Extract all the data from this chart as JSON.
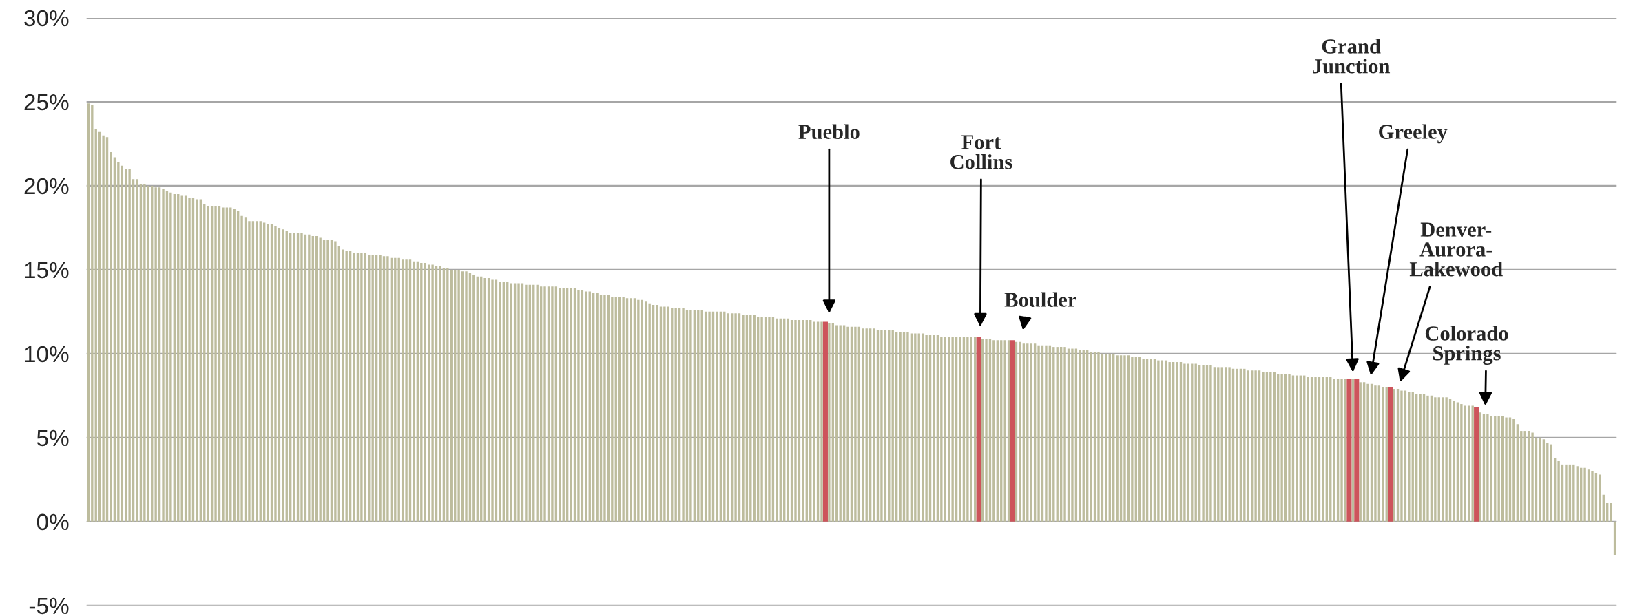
{
  "chart_data": {
    "type": "bar",
    "categories": [
      null,
      null,
      null,
      null,
      null,
      null,
      null,
      null,
      null,
      null,
      null,
      null,
      null,
      null,
      null,
      null,
      null,
      null,
      null,
      null,
      null,
      null,
      null,
      null,
      null,
      null,
      null,
      null,
      null,
      null,
      null,
      null,
      null,
      null,
      null,
      null,
      null,
      null,
      null,
      null,
      null,
      null,
      null,
      null,
      null,
      null,
      null,
      null,
      null,
      null,
      null,
      null,
      null,
      null,
      null,
      null,
      null,
      null,
      null,
      null,
      null,
      null,
      null,
      null,
      null,
      null,
      null,
      null,
      null,
      null,
      null,
      null,
      null,
      null,
      null,
      null,
      null,
      null,
      null,
      null,
      null,
      null,
      null,
      null,
      null,
      null,
      null,
      null,
      null,
      null,
      null,
      null,
      null,
      null,
      null,
      null,
      null,
      null,
      null,
      null,
      null,
      null,
      null,
      null,
      null,
      null,
      null,
      null,
      null,
      null,
      null,
      null,
      null,
      null,
      null,
      null,
      null,
      null,
      null,
      null,
      null,
      null,
      null,
      null,
      null,
      null,
      null,
      null,
      null,
      null,
      null,
      null,
      null,
      null,
      null,
      null,
      null,
      null,
      null,
      null,
      null,
      null,
      null,
      null,
      null,
      null,
      null,
      null,
      null,
      null,
      null,
      null,
      null,
      null,
      null,
      null,
      null,
      null,
      null,
      null,
      null,
      null,
      null,
      null,
      null,
      null,
      null,
      null,
      null,
      null,
      null,
      null,
      null,
      null,
      null,
      null,
      null,
      null,
      null,
      null,
      null,
      null,
      null,
      null,
      null,
      null,
      null,
      null,
      null,
      null,
      null,
      null,
      null,
      null,
      null,
      null,
      null,
      null,
      null,
      null,
      null,
      null,
      null,
      null,
      null,
      null,
      null,
      null,
      null,
      null,
      null,
      null,
      null,
      null,
      null,
      null,
      null,
      null,
      null,
      null,
      null,
      null,
      null,
      null,
      null,
      null,
      null,
      null,
      null,
      null,
      null,
      null,
      null,
      null,
      null,
      null,
      null,
      null,
      null,
      null,
      null,
      null,
      null,
      null,
      null,
      null,
      null,
      null,
      null,
      null,
      null,
      null,
      null,
      null,
      null,
      null,
      null,
      null,
      null,
      null,
      null,
      null,
      null,
      null,
      null,
      null,
      null,
      null,
      null,
      null,
      null,
      null,
      null,
      null,
      null,
      null,
      null,
      null,
      null,
      null,
      null,
      null,
      null,
      null,
      null,
      null,
      null,
      null,
      null,
      null,
      null,
      null,
      null,
      null,
      null,
      null,
      null,
      null,
      null,
      null,
      null,
      null,
      null,
      null,
      null,
      null,
      null,
      null,
      null,
      null,
      null,
      null,
      null,
      null,
      null,
      null,
      null,
      null,
      null,
      null,
      null,
      null,
      null,
      null,
      null,
      null,
      null,
      null,
      null,
      null,
      null,
      null,
      null,
      null,
      null,
      null,
      null,
      null,
      null,
      null,
      null,
      null,
      null,
      null,
      null,
      null,
      null,
      null,
      null,
      null,
      null,
      null,
      null,
      null,
      null,
      null,
      null,
      null,
      null,
      null,
      null,
      null,
      null,
      null,
      null,
      null,
      null,
      null,
      null,
      null,
      null,
      null,
      null,
      null,
      null,
      null,
      null,
      null,
      null,
      null,
      null,
      null,
      null,
      null,
      null,
      null,
      null,
      null,
      null,
      null,
      null,
      null,
      null,
      null,
      null,
      null,
      null,
      null,
      null,
      null,
      null,
      null,
      null,
      null,
      null,
      null,
      null,
      null,
      null
    ],
    "values": [
      24.9,
      24.8,
      23.4,
      23.2,
      23.0,
      22.9,
      22.0,
      21.7,
      21.4,
      21.2,
      21.0,
      21.0,
      20.4,
      20.4,
      20.1,
      20.1,
      20.0,
      20.0,
      19.9,
      19.9,
      19.8,
      19.7,
      19.6,
      19.5,
      19.5,
      19.4,
      19.4,
      19.3,
      19.3,
      19.2,
      19.2,
      18.9,
      18.8,
      18.8,
      18.8,
      18.8,
      18.7,
      18.7,
      18.7,
      18.6,
      18.5,
      18.2,
      18.1,
      17.9,
      17.9,
      17.9,
      17.9,
      17.8,
      17.7,
      17.7,
      17.6,
      17.5,
      17.4,
      17.3,
      17.2,
      17.2,
      17.2,
      17.2,
      17.1,
      17.1,
      17.0,
      17.0,
      16.9,
      16.8,
      16.8,
      16.8,
      16.7,
      16.4,
      16.2,
      16.1,
      16.1,
      16.0,
      16.0,
      16.0,
      16.0,
      15.9,
      15.9,
      15.9,
      15.9,
      15.8,
      15.8,
      15.7,
      15.7,
      15.7,
      15.6,
      15.6,
      15.6,
      15.5,
      15.5,
      15.4,
      15.4,
      15.3,
      15.3,
      15.2,
      15.2,
      15.1,
      15.1,
      15.0,
      15.0,
      15.0,
      14.9,
      14.9,
      14.8,
      14.7,
      14.6,
      14.6,
      14.5,
      14.5,
      14.4,
      14.4,
      14.3,
      14.3,
      14.3,
      14.2,
      14.2,
      14.2,
      14.2,
      14.1,
      14.1,
      14.1,
      14.1,
      14.0,
      14.0,
      14.0,
      14.0,
      14.0,
      13.9,
      13.9,
      13.9,
      13.9,
      13.9,
      13.8,
      13.8,
      13.7,
      13.7,
      13.6,
      13.6,
      13.5,
      13.5,
      13.5,
      13.4,
      13.4,
      13.4,
      13.4,
      13.3,
      13.3,
      13.3,
      13.2,
      13.2,
      13.1,
      13.0,
      12.9,
      12.9,
      12.8,
      12.8,
      12.8,
      12.7,
      12.7,
      12.7,
      12.7,
      12.6,
      12.6,
      12.6,
      12.6,
      12.6,
      12.5,
      12.5,
      12.5,
      12.5,
      12.5,
      12.5,
      12.4,
      12.4,
      12.4,
      12.4,
      12.3,
      12.3,
      12.3,
      12.3,
      12.2,
      12.2,
      12.2,
      12.2,
      12.2,
      12.1,
      12.1,
      12.1,
      12.1,
      12.0,
      12.0,
      12.0,
      12.0,
      12.0,
      12.0,
      11.9,
      11.9,
      11.9,
      11.9,
      11.8,
      11.8,
      11.7,
      11.7,
      11.7,
      11.6,
      11.6,
      11.6,
      11.6,
      11.5,
      11.5,
      11.5,
      11.5,
      11.4,
      11.4,
      11.4,
      11.4,
      11.4,
      11.3,
      11.3,
      11.3,
      11.3,
      11.2,
      11.2,
      11.2,
      11.2,
      11.1,
      11.1,
      11.1,
      11.1,
      11.0,
      11.0,
      11.0,
      11.0,
      11.0,
      11.0,
      11.0,
      11.0,
      11.0,
      11.0,
      11.0,
      10.9,
      10.9,
      10.9,
      10.8,
      10.8,
      10.8,
      10.8,
      10.8,
      10.8,
      10.7,
      10.7,
      10.6,
      10.6,
      10.6,
      10.6,
      10.5,
      10.5,
      10.5,
      10.5,
      10.4,
      10.4,
      10.4,
      10.4,
      10.3,
      10.3,
      10.3,
      10.2,
      10.2,
      10.2,
      10.1,
      10.1,
      10.1,
      10.0,
      10.0,
      10.0,
      10.0,
      9.9,
      9.9,
      9.9,
      9.9,
      9.8,
      9.8,
      9.8,
      9.7,
      9.7,
      9.7,
      9.7,
      9.6,
      9.6,
      9.6,
      9.5,
      9.5,
      9.5,
      9.5,
      9.4,
      9.4,
      9.4,
      9.4,
      9.3,
      9.3,
      9.3,
      9.3,
      9.2,
      9.2,
      9.2,
      9.2,
      9.2,
      9.1,
      9.1,
      9.1,
      9.1,
      9.0,
      9.0,
      9.0,
      9.0,
      8.9,
      8.9,
      8.9,
      8.9,
      8.8,
      8.8,
      8.8,
      8.8,
      8.7,
      8.7,
      8.7,
      8.7,
      8.6,
      8.6,
      8.6,
      8.6,
      8.6,
      8.6,
      8.6,
      8.5,
      8.5,
      8.5,
      8.5,
      8.5,
      8.5,
      8.5,
      8.3,
      8.3,
      8.2,
      8.2,
      8.1,
      8.1,
      8.0,
      8.0,
      8.0,
      7.9,
      7.9,
      7.8,
      7.8,
      7.7,
      7.7,
      7.6,
      7.6,
      7.6,
      7.5,
      7.5,
      7.4,
      7.4,
      7.4,
      7.4,
      7.3,
      7.2,
      7.1,
      7.0,
      6.9,
      6.9,
      6.9,
      6.8,
      6.5,
      6.4,
      6.4,
      6.3,
      6.3,
      6.3,
      6.3,
      6.2,
      6.2,
      6.1,
      5.8,
      5.4,
      5.4,
      5.4,
      5.3,
      5.0,
      5.0,
      4.9,
      4.7,
      4.6,
      3.8,
      3.6,
      3.4,
      3.4,
      3.4,
      3.4,
      3.3,
      3.2,
      3.2,
      3.1,
      3.0,
      2.9,
      2.8,
      1.6,
      1.1,
      1.1,
      -2.0
    ],
    "colors": [
      "#bdbc9d",
      "#bdbc9d",
      "#bdbc9d",
      "#bdbc9d",
      "#bdbc9d",
      "#bdbc9d",
      "#bdbc9d",
      "#bdbc9d",
      "#bdbc9d",
      "#bdbc9d",
      "#bdbc9d",
      "#bdbc9d",
      "#bdbc9d",
      "#bdbc9d",
      "#bdbc9d",
      "#bdbc9d",
      "#bdbc9d",
      "#bdbc9d",
      "#bdbc9d",
      "#bdbc9d",
      "#bdbc9d",
      "#bdbc9d",
      "#bdbc9d",
      "#bdbc9d",
      "#bdbc9d",
      "#bdbc9d",
      "#bdbc9d",
      "#bdbc9d",
      "#bdbc9d",
      "#bdbc9d",
      "#bdbc9d",
      "#bdbc9d",
      "#bdbc9d",
      "#bdbc9d",
      "#bdbc9d",
      "#bdbc9d",
      "#bdbc9d",
      "#bdbc9d",
      "#bdbc9d",
      "#bdbc9d",
      "#bdbc9d",
      "#bdbc9d",
      "#bdbc9d",
      "#bdbc9d",
      "#bdbc9d",
      "#bdbc9d",
      "#bdbc9d",
      "#bdbc9d",
      "#bdbc9d",
      "#bdbc9d",
      "#bdbc9d",
      "#bdbc9d",
      "#bdbc9d",
      "#bdbc9d",
      "#bdbc9d",
      "#bdbc9d",
      "#bdbc9d",
      "#bdbc9d",
      "#bdbc9d",
      "#bdbc9d",
      "#bdbc9d",
      "#bdbc9d",
      "#bdbc9d",
      "#bdbc9d",
      "#bdbc9d",
      "#bdbc9d",
      "#bdbc9d",
      "#bdbc9d",
      "#bdbc9d",
      "#bdbc9d",
      "#bdbc9d",
      "#bdbc9d",
      "#bdbc9d",
      "#bdbc9d",
      "#bdbc9d",
      "#bdbc9d",
      "#bdbc9d",
      "#bdbc9d",
      "#bdbc9d",
      "#bdbc9d",
      "#bdbc9d",
      "#bdbc9d",
      "#bdbc9d",
      "#bdbc9d",
      "#bdbc9d",
      "#bdbc9d",
      "#bdbc9d",
      "#bdbc9d",
      "#bdbc9d",
      "#bdbc9d",
      "#bdbc9d",
      "#bdbc9d",
      "#bdbc9d",
      "#bdbc9d",
      "#bdbc9d",
      "#bdbc9d",
      "#bdbc9d",
      "#bdbc9d",
      "#bdbc9d",
      "#bdbc9d",
      "#bdbc9d",
      "#bdbc9d",
      "#bdbc9d",
      "#bdbc9d",
      "#bdbc9d",
      "#bdbc9d",
      "#bdbc9d",
      "#bdbc9d",
      "#bdbc9d",
      "#bdbc9d",
      "#bdbc9d",
      "#bdbc9d",
      "#bdbc9d",
      "#bdbc9d",
      "#bdbc9d",
      "#bdbc9d",
      "#bdbc9d",
      "#bdbc9d",
      "#bdbc9d",
      "#bdbc9d",
      "#bdbc9d",
      "#bdbc9d",
      "#bdbc9d",
      "#bdbc9d",
      "#bdbc9d",
      "#bdbc9d",
      "#bdbc9d",
      "#bdbc9d",
      "#bdbc9d",
      "#bdbc9d",
      "#bdbc9d",
      "#bdbc9d",
      "#bdbc9d",
      "#bdbc9d",
      "#bdbc9d",
      "#bdbc9d",
      "#bdbc9d",
      "#bdbc9d",
      "#bdbc9d",
      "#bdbc9d",
      "#bdbc9d",
      "#bdbc9d",
      "#bdbc9d",
      "#bdbc9d",
      "#bdbc9d",
      "#bdbc9d",
      "#bdbc9d",
      "#bdbc9d",
      "#bdbc9d",
      "#bdbc9d",
      "#bdbc9d",
      "#bdbc9d",
      "#bdbc9d",
      "#bdbc9d",
      "#bdbc9d",
      "#bdbc9d",
      "#bdbc9d",
      "#bdbc9d",
      "#bdbc9d",
      "#bdbc9d",
      "#bdbc9d",
      "#bdbc9d",
      "#bdbc9d",
      "#bdbc9d",
      "#bdbc9d",
      "#bdbc9d",
      "#bdbc9d",
      "#bdbc9d",
      "#bdbc9d",
      "#bdbc9d",
      "#bdbc9d",
      "#bdbc9d",
      "#bdbc9d",
      "#bdbc9d",
      "#bdbc9d",
      "#bdbc9d",
      "#bdbc9d",
      "#bdbc9d",
      "#bdbc9d",
      "#bdbc9d",
      "#bdbc9d",
      "#bdbc9d",
      "#bdbc9d",
      "#bdbc9d",
      "#bdbc9d",
      "#bdbc9d",
      "#bdbc9d",
      "#bdbc9d",
      "#bdbc9d",
      "#bdbc9d",
      "#bdbc9d",
      "#bdbc9d",
      "#bdbc9d",
      "#bdbc9d",
      "#bdbc9d",
      "#bdbc9d",
      "#bdbc9d",
      "#cd545b",
      "#bdbc9d",
      "#bdbc9d",
      "#bdbc9d",
      "#bdbc9d",
      "#bdbc9d",
      "#bdbc9d",
      "#bdbc9d",
      "#bdbc9d",
      "#bdbc9d",
      "#bdbc9d",
      "#bdbc9d",
      "#bdbc9d",
      "#bdbc9d",
      "#bdbc9d",
      "#bdbc9d",
      "#bdbc9d",
      "#bdbc9d",
      "#bdbc9d",
      "#bdbc9d",
      "#bdbc9d",
      "#bdbc9d",
      "#bdbc9d",
      "#bdbc9d",
      "#bdbc9d",
      "#bdbc9d",
      "#bdbc9d",
      "#bdbc9d",
      "#bdbc9d",
      "#bdbc9d",
      "#bdbc9d",
      "#bdbc9d",
      "#bdbc9d",
      "#bdbc9d",
      "#bdbc9d",
      "#bdbc9d",
      "#bdbc9d",
      "#bdbc9d",
      "#bdbc9d",
      "#bdbc9d",
      "#bdbc9d",
      "#cd545b",
      "#bdbc9d",
      "#bdbc9d",
      "#bdbc9d",
      "#bdbc9d",
      "#bdbc9d",
      "#bdbc9d",
      "#bdbc9d",
      "#bdbc9d",
      "#cd545b",
      "#bdbc9d",
      "#bdbc9d",
      "#bdbc9d",
      "#bdbc9d",
      "#bdbc9d",
      "#bdbc9d",
      "#bdbc9d",
      "#bdbc9d",
      "#bdbc9d",
      "#bdbc9d",
      "#bdbc9d",
      "#bdbc9d",
      "#bdbc9d",
      "#bdbc9d",
      "#bdbc9d",
      "#bdbc9d",
      "#bdbc9d",
      "#bdbc9d",
      "#bdbc9d",
      "#bdbc9d",
      "#bdbc9d",
      "#bdbc9d",
      "#bdbc9d",
      "#bdbc9d",
      "#bdbc9d",
      "#bdbc9d",
      "#bdbc9d",
      "#bdbc9d",
      "#bdbc9d",
      "#bdbc9d",
      "#bdbc9d",
      "#bdbc9d",
      "#bdbc9d",
      "#bdbc9d",
      "#bdbc9d",
      "#bdbc9d",
      "#bdbc9d",
      "#bdbc9d",
      "#bdbc9d",
      "#bdbc9d",
      "#bdbc9d",
      "#bdbc9d",
      "#bdbc9d",
      "#bdbc9d",
      "#bdbc9d",
      "#bdbc9d",
      "#bdbc9d",
      "#bdbc9d",
      "#bdbc9d",
      "#bdbc9d",
      "#bdbc9d",
      "#bdbc9d",
      "#bdbc9d",
      "#bdbc9d",
      "#bdbc9d",
      "#bdbc9d",
      "#bdbc9d",
      "#bdbc9d",
      "#bdbc9d",
      "#bdbc9d",
      "#bdbc9d",
      "#bdbc9d",
      "#bdbc9d",
      "#bdbc9d",
      "#bdbc9d",
      "#bdbc9d",
      "#bdbc9d",
      "#bdbc9d",
      "#bdbc9d",
      "#bdbc9d",
      "#bdbc9d",
      "#bdbc9d",
      "#bdbc9d",
      "#bdbc9d",
      "#bdbc9d",
      "#bdbc9d",
      "#bdbc9d",
      "#bdbc9d",
      "#bdbc9d",
      "#bdbc9d",
      "#bdbc9d",
      "#bdbc9d",
      "#bdbc9d",
      "#bdbc9d",
      "#bdbc9d",
      "#bdbc9d",
      "#bdbc9d",
      "#bdbc9d",
      "#bdbc9d",
      "#cd545b",
      "#bdbc9d",
      "#cd545b",
      "#bdbc9d",
      "#bdbc9d",
      "#bdbc9d",
      "#bdbc9d",
      "#bdbc9d",
      "#bdbc9d",
      "#bdbc9d",
      "#bdbc9d",
      "#cd545b",
      "#bdbc9d",
      "#bdbc9d",
      "#bdbc9d",
      "#bdbc9d",
      "#bdbc9d",
      "#bdbc9d",
      "#bdbc9d",
      "#bdbc9d",
      "#bdbc9d",
      "#bdbc9d",
      "#bdbc9d",
      "#bdbc9d",
      "#bdbc9d",
      "#bdbc9d",
      "#bdbc9d",
      "#bdbc9d",
      "#bdbc9d",
      "#bdbc9d",
      "#bdbc9d",
      "#bdbc9d",
      "#bdbc9d",
      "#bdbc9d",
      "#cd545b",
      "#bdbc9d",
      "#bdbc9d",
      "#bdbc9d",
      "#bdbc9d",
      "#bdbc9d",
      "#bdbc9d",
      "#bdbc9d",
      "#bdbc9d",
      "#bdbc9d",
      "#bdbc9d",
      "#bdbc9d",
      "#bdbc9d",
      "#bdbc9d",
      "#bdbc9d",
      "#bdbc9d",
      "#bdbc9d",
      "#bdbc9d",
      "#bdbc9d",
      "#bdbc9d",
      "#bdbc9d",
      "#bdbc9d",
      "#bdbc9d",
      "#bdbc9d",
      "#bdbc9d",
      "#bdbc9d",
      "#bdbc9d",
      "#bdbc9d",
      "#bdbc9d",
      "#bdbc9d",
      "#bdbc9d",
      "#bdbc9d",
      "#bdbc9d",
      "#bdbc9d",
      "#bdbc9d",
      "#bdbc9d",
      "#bdbc9d",
      "#bdbc9d"
    ],
    "ylim": [
      -5,
      30
    ],
    "yticks": [
      {
        "value": -5,
        "label": "-5%"
      },
      {
        "value": 0,
        "label": "0%"
      },
      {
        "value": 5,
        "label": "5%"
      },
      {
        "value": 10,
        "label": "10%"
      },
      {
        "value": 15,
        "label": "15%"
      },
      {
        "value": 20,
        "label": "20%"
      },
      {
        "value": 25,
        "label": "25%"
      },
      {
        "value": 30,
        "label": "30%"
      }
    ],
    "grid": "y",
    "annotations": [
      "Pueblo",
      "Fort\nCollins",
      "Boulder",
      "Grand\nJunction",
      "Greeley",
      "Denver-\nAurora-\nLakewood",
      "Colorado\nSprings"
    ]
  }
}
